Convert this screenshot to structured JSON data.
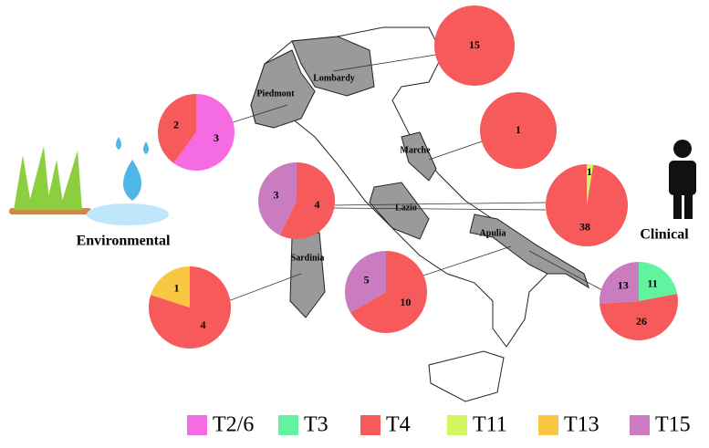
{
  "chart_data": [
    {
      "type": "pie",
      "categories": [
        "T2/6",
        "T4"
      ],
      "values": [
        3,
        2
      ]
    },
    {
      "type": "pie",
      "categories": [
        "T4"
      ],
      "values": [
        15
      ]
    },
    {
      "type": "pie",
      "categories": [
        "T4"
      ],
      "values": [
        1
      ]
    },
    {
      "type": "pie",
      "categories": [
        "T4",
        "T15"
      ],
      "values": [
        4,
        3
      ]
    },
    {
      "type": "pie",
      "categories": [
        "T11",
        "T4"
      ],
      "values": [
        1,
        38
      ]
    },
    {
      "type": "pie",
      "categories": [
        "T4",
        "T13"
      ],
      "values": [
        4,
        1
      ]
    },
    {
      "type": "pie",
      "categories": [
        "T4",
        "T15"
      ],
      "values": [
        10,
        5
      ]
    },
    {
      "type": "pie",
      "categories": [
        "T3",
        "T4",
        "T15"
      ],
      "values": [
        11,
        26,
        13
      ]
    }
  ],
  "legend": {
    "items": [
      {
        "name": "T2/6",
        "color": "#f46be2"
      },
      {
        "name": "T3",
        "color": "#62f3a0"
      },
      {
        "name": "T4",
        "color": "#f65a5a"
      },
      {
        "name": "T11",
        "color": "#d3f55e"
      },
      {
        "name": "T13",
        "color": "#f8c842"
      },
      {
        "name": "T15",
        "color": "#c97dc0"
      }
    ]
  },
  "map": {
    "regions": [
      "Lombardy",
      "Piedmont",
      "Marche",
      "Lazio",
      "Apulia",
      "Sardinia"
    ]
  },
  "labels": {
    "left": "Environmental",
    "right": "Clinical"
  }
}
